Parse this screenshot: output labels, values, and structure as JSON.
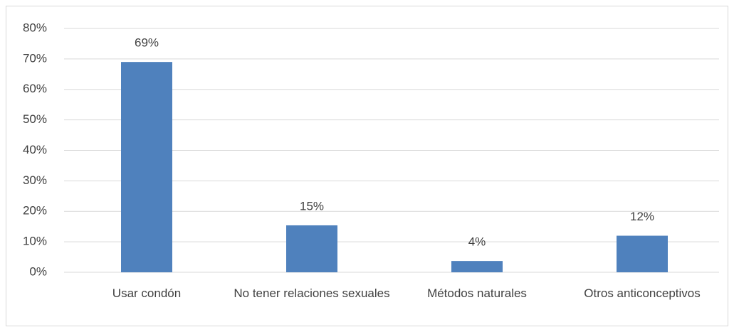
{
  "chart_data": {
    "type": "bar",
    "categories": [
      "Usar condón",
      "No tener relaciones sexuales",
      "Métodos naturales",
      "Otros anticonceptivos"
    ],
    "values": [
      69,
      15.4,
      3.7,
      12
    ],
    "value_labels": [
      "69%",
      "15%",
      "4%",
      "12%"
    ],
    "color": "#4f81bd",
    "ylim": [
      0,
      80
    ],
    "yticks": [
      {
        "value": 0,
        "label": "0%"
      },
      {
        "value": 10,
        "label": "10%"
      },
      {
        "value": 20,
        "label": "20%"
      },
      {
        "value": 30,
        "label": "30%"
      },
      {
        "value": 40,
        "label": "40%"
      },
      {
        "value": 50,
        "label": "50%"
      },
      {
        "value": 60,
        "label": "60%"
      },
      {
        "value": 70,
        "label": "70%"
      },
      {
        "value": 80,
        "label": "80%"
      }
    ],
    "grid": true
  }
}
